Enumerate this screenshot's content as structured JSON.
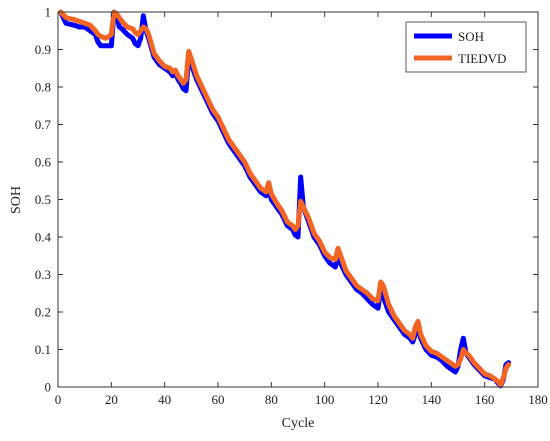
{
  "chart_data": {
    "type": "line",
    "title": "",
    "xlabel": "Cycle",
    "ylabel": "SOH",
    "xlim": [
      0,
      180
    ],
    "ylim": [
      0,
      1
    ],
    "xticks": [
      0,
      20,
      40,
      60,
      80,
      100,
      120,
      140,
      160,
      180
    ],
    "yticks": [
      0,
      0.1,
      0.2,
      0.3,
      0.4,
      0.5,
      0.6,
      0.7,
      0.8,
      0.9,
      1
    ],
    "grid": false,
    "legend_position": "top-right",
    "series": [
      {
        "name": "SOH",
        "color": "#0000ff",
        "points": [
          [
            1,
            1.0
          ],
          [
            3,
            0.97
          ],
          [
            6,
            0.965
          ],
          [
            8,
            0.96
          ],
          [
            10,
            0.96
          ],
          [
            12,
            0.95
          ],
          [
            14,
            0.94
          ],
          [
            15,
            0.92
          ],
          [
            16,
            0.91
          ],
          [
            18,
            0.91
          ],
          [
            20,
            0.91
          ],
          [
            21,
            1.0
          ],
          [
            22,
            0.99
          ],
          [
            23,
            0.96
          ],
          [
            24,
            0.955
          ],
          [
            26,
            0.94
          ],
          [
            28,
            0.93
          ],
          [
            29,
            0.915
          ],
          [
            30,
            0.91
          ],
          [
            31,
            0.93
          ],
          [
            32,
            0.99
          ],
          [
            33,
            0.95
          ],
          [
            34,
            0.93
          ],
          [
            36,
            0.88
          ],
          [
            38,
            0.86
          ],
          [
            40,
            0.85
          ],
          [
            42,
            0.84
          ],
          [
            43,
            0.83
          ],
          [
            44,
            0.84
          ],
          [
            45,
            0.82
          ],
          [
            46,
            0.81
          ],
          [
            47,
            0.795
          ],
          [
            48,
            0.79
          ],
          [
            49,
            0.88
          ],
          [
            50,
            0.86
          ],
          [
            52,
            0.82
          ],
          [
            54,
            0.79
          ],
          [
            56,
            0.76
          ],
          [
            58,
            0.73
          ],
          [
            60,
            0.71
          ],
          [
            62,
            0.68
          ],
          [
            64,
            0.65
          ],
          [
            66,
            0.63
          ],
          [
            68,
            0.61
          ],
          [
            70,
            0.59
          ],
          [
            72,
            0.56
          ],
          [
            74,
            0.54
          ],
          [
            76,
            0.52
          ],
          [
            78,
            0.51
          ],
          [
            79,
            0.53
          ],
          [
            80,
            0.5
          ],
          [
            82,
            0.48
          ],
          [
            84,
            0.46
          ],
          [
            86,
            0.43
          ],
          [
            88,
            0.42
          ],
          [
            89,
            0.405
          ],
          [
            90,
            0.4
          ],
          [
            91,
            0.56
          ],
          [
            92,
            0.48
          ],
          [
            94,
            0.44
          ],
          [
            96,
            0.4
          ],
          [
            98,
            0.38
          ],
          [
            100,
            0.35
          ],
          [
            102,
            0.33
          ],
          [
            104,
            0.32
          ],
          [
            105,
            0.35
          ],
          [
            106,
            0.33
          ],
          [
            108,
            0.3
          ],
          [
            110,
            0.28
          ],
          [
            112,
            0.26
          ],
          [
            114,
            0.25
          ],
          [
            116,
            0.235
          ],
          [
            118,
            0.22
          ],
          [
            120,
            0.21
          ],
          [
            121,
            0.26
          ],
          [
            122,
            0.24
          ],
          [
            124,
            0.2
          ],
          [
            126,
            0.18
          ],
          [
            128,
            0.16
          ],
          [
            130,
            0.14
          ],
          [
            132,
            0.13
          ],
          [
            133,
            0.12
          ],
          [
            134,
            0.14
          ],
          [
            135,
            0.16
          ],
          [
            136,
            0.13
          ],
          [
            138,
            0.1
          ],
          [
            140,
            0.085
          ],
          [
            142,
            0.08
          ],
          [
            144,
            0.07
          ],
          [
            146,
            0.055
          ],
          [
            148,
            0.045
          ],
          [
            149,
            0.04
          ],
          [
            150,
            0.055
          ],
          [
            151,
            0.1
          ],
          [
            152,
            0.13
          ],
          [
            153,
            0.09
          ],
          [
            154,
            0.08
          ],
          [
            156,
            0.06
          ],
          [
            158,
            0.045
          ],
          [
            160,
            0.03
          ],
          [
            162,
            0.025
          ],
          [
            164,
            0.02
          ],
          [
            165,
            0.01
          ],
          [
            166,
            0.003
          ],
          [
            167,
            0.02
          ],
          [
            168,
            0.06
          ],
          [
            169,
            0.065
          ]
        ]
      },
      {
        "name": "TIEDVD",
        "color": "#f26522",
        "points": [
          [
            1,
            1.0
          ],
          [
            3,
            0.985
          ],
          [
            6,
            0.98
          ],
          [
            8,
            0.975
          ],
          [
            10,
            0.97
          ],
          [
            12,
            0.965
          ],
          [
            14,
            0.95
          ],
          [
            15,
            0.94
          ],
          [
            16,
            0.935
          ],
          [
            18,
            0.93
          ],
          [
            20,
            0.94
          ],
          [
            21,
            1.0
          ],
          [
            22,
            0.995
          ],
          [
            23,
            0.985
          ],
          [
            24,
            0.975
          ],
          [
            26,
            0.96
          ],
          [
            28,
            0.955
          ],
          [
            29,
            0.945
          ],
          [
            30,
            0.94
          ],
          [
            31,
            0.95
          ],
          [
            32,
            0.96
          ],
          [
            33,
            0.955
          ],
          [
            34,
            0.94
          ],
          [
            36,
            0.89
          ],
          [
            38,
            0.87
          ],
          [
            40,
            0.855
          ],
          [
            42,
            0.85
          ],
          [
            43,
            0.84
          ],
          [
            44,
            0.845
          ],
          [
            45,
            0.83
          ],
          [
            46,
            0.82
          ],
          [
            47,
            0.81
          ],
          [
            48,
            0.82
          ],
          [
            49,
            0.895
          ],
          [
            50,
            0.875
          ],
          [
            52,
            0.83
          ],
          [
            54,
            0.8
          ],
          [
            56,
            0.77
          ],
          [
            58,
            0.74
          ],
          [
            60,
            0.72
          ],
          [
            62,
            0.69
          ],
          [
            64,
            0.66
          ],
          [
            66,
            0.64
          ],
          [
            68,
            0.62
          ],
          [
            70,
            0.6
          ],
          [
            72,
            0.57
          ],
          [
            74,
            0.55
          ],
          [
            76,
            0.53
          ],
          [
            78,
            0.52
          ],
          [
            79,
            0.545
          ],
          [
            80,
            0.515
          ],
          [
            82,
            0.49
          ],
          [
            84,
            0.47
          ],
          [
            86,
            0.44
          ],
          [
            88,
            0.43
          ],
          [
            89,
            0.42
          ],
          [
            90,
            0.43
          ],
          [
            91,
            0.495
          ],
          [
            92,
            0.48
          ],
          [
            94,
            0.45
          ],
          [
            96,
            0.41
          ],
          [
            98,
            0.39
          ],
          [
            100,
            0.36
          ],
          [
            102,
            0.345
          ],
          [
            104,
            0.34
          ],
          [
            105,
            0.37
          ],
          [
            106,
            0.35
          ],
          [
            108,
            0.31
          ],
          [
            110,
            0.29
          ],
          [
            112,
            0.27
          ],
          [
            114,
            0.26
          ],
          [
            116,
            0.25
          ],
          [
            118,
            0.235
          ],
          [
            120,
            0.23
          ],
          [
            121,
            0.28
          ],
          [
            122,
            0.27
          ],
          [
            124,
            0.22
          ],
          [
            126,
            0.19
          ],
          [
            128,
            0.17
          ],
          [
            130,
            0.15
          ],
          [
            132,
            0.14
          ],
          [
            133,
            0.13
          ],
          [
            134,
            0.16
          ],
          [
            135,
            0.175
          ],
          [
            136,
            0.14
          ],
          [
            138,
            0.11
          ],
          [
            140,
            0.095
          ],
          [
            142,
            0.09
          ],
          [
            144,
            0.08
          ],
          [
            146,
            0.07
          ],
          [
            148,
            0.06
          ],
          [
            149,
            0.055
          ],
          [
            150,
            0.06
          ],
          [
            151,
            0.075
          ],
          [
            152,
            0.1
          ],
          [
            153,
            0.09
          ],
          [
            154,
            0.085
          ],
          [
            156,
            0.065
          ],
          [
            158,
            0.05
          ],
          [
            160,
            0.035
          ],
          [
            162,
            0.03
          ],
          [
            164,
            0.02
          ],
          [
            165,
            0.015
          ],
          [
            166,
            0.005
          ],
          [
            167,
            0.025
          ],
          [
            168,
            0.05
          ],
          [
            169,
            0.06
          ]
        ]
      }
    ]
  }
}
